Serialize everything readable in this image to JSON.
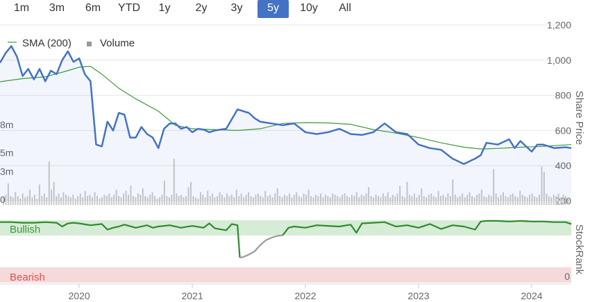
{
  "range_selector": {
    "options": [
      "1m",
      "3m",
      "6m",
      "YTD",
      "1y",
      "2y",
      "3y",
      "5y",
      "10y",
      "All"
    ],
    "selected": "5y"
  },
  "colors": {
    "price_line": "#4472c4",
    "sma_line": "#3a9a3a",
    "volume_bar": "#c8c8c8",
    "bullish_band": "#d6ecd6",
    "bearish_band": "#f6dadb",
    "stockrank_bullish": "#2e8b2e",
    "stockrank_neutral": "#999999",
    "bullish_text": "#3a9a3a",
    "bearish_text": "#d9534f"
  },
  "chart_data": [
    {
      "type": "line",
      "name": "price-panel",
      "ylabel": "Share Price",
      "ylim": [
        200,
        1200
      ],
      "yticks": [
        "200",
        "400",
        "600",
        "800",
        "1,000",
        "1,200"
      ],
      "legend": [
        "SMA (200)",
        "Volume"
      ],
      "legend_position": "top-left",
      "x_start": 2019.3,
      "x_end": 2024.35,
      "xticks": [
        "2020",
        "2021",
        "2022",
        "2023",
        "2024"
      ],
      "series": [
        {
          "name": "SMA (200)",
          "x": [
            2019.3,
            2019.5,
            2019.7,
            2019.9,
            2020.0,
            2020.1,
            2020.2,
            2020.35,
            2020.5,
            2020.7,
            2020.85,
            2021.0,
            2021.2,
            2021.4,
            2021.6,
            2021.8,
            2022.0,
            2022.2,
            2022.4,
            2022.6,
            2022.8,
            2023.0,
            2023.2,
            2023.4,
            2023.55,
            2023.7,
            2023.9,
            2024.1,
            2024.35
          ],
          "values": [
            877,
            895,
            905,
            940,
            960,
            965,
            920,
            840,
            780,
            710,
            630,
            610,
            605,
            600,
            610,
            640,
            645,
            643,
            635,
            605,
            585,
            560,
            530,
            505,
            495,
            498,
            505,
            510,
            520
          ]
        },
        {
          "name": "Share Price",
          "x": [
            2019.3,
            2019.35,
            2019.4,
            2019.45,
            2019.5,
            2019.55,
            2019.6,
            2019.65,
            2019.7,
            2019.75,
            2019.8,
            2019.85,
            2019.9,
            2019.95,
            2020.0,
            2020.05,
            2020.1,
            2020.15,
            2020.2,
            2020.25,
            2020.3,
            2020.35,
            2020.4,
            2020.45,
            2020.5,
            2020.55,
            2020.6,
            2020.65,
            2020.7,
            2020.75,
            2020.8,
            2020.85,
            2020.9,
            2020.95,
            2021.0,
            2021.05,
            2021.1,
            2021.15,
            2021.2,
            2021.3,
            2021.4,
            2021.5,
            2021.55,
            2021.6,
            2021.7,
            2021.8,
            2021.9,
            2022.0,
            2022.1,
            2022.2,
            2022.3,
            2022.4,
            2022.5,
            2022.6,
            2022.7,
            2022.8,
            2022.9,
            2023.0,
            2023.1,
            2023.2,
            2023.3,
            2023.4,
            2023.5,
            2023.55,
            2023.6,
            2023.7,
            2023.8,
            2023.85,
            2023.9,
            2024.0,
            2024.05,
            2024.1,
            2024.2,
            2024.3,
            2024.35
          ],
          "values": [
            985,
            1040,
            1080,
            1020,
            910,
            950,
            890,
            950,
            880,
            940,
            920,
            1000,
            1050,
            990,
            1010,
            920,
            880,
            520,
            510,
            650,
            600,
            700,
            690,
            560,
            560,
            620,
            580,
            560,
            500,
            610,
            640,
            640,
            610,
            620,
            590,
            610,
            605,
            590,
            600,
            610,
            720,
            700,
            670,
            650,
            640,
            630,
            640,
            590,
            580,
            590,
            610,
            580,
            575,
            590,
            640,
            590,
            580,
            520,
            500,
            490,
            440,
            410,
            440,
            460,
            530,
            520,
            550,
            500,
            540,
            480,
            520,
            520,
            500,
            505,
            500
          ]
        }
      ],
      "volume": {
        "unit_labels": [
          "0",
          "3m",
          "5m",
          "8m"
        ],
        "values": [
          0.6,
          0.8,
          1.7,
          0.7,
          0.6,
          1.0,
          0.7,
          0.5,
          0.9,
          0.6,
          0.7,
          1.2,
          0.6,
          0.8,
          0.5,
          1.6,
          0.7,
          0.9,
          0.6,
          3.4,
          1.2,
          1.8,
          0.7,
          0.9,
          0.6,
          1.0,
          0.8,
          0.7,
          0.6,
          0.8,
          0.5,
          0.7,
          0.9,
          0.6,
          1.1,
          0.7,
          0.8,
          0.6,
          1.0,
          0.7,
          0.5,
          0.6,
          0.8,
          0.7,
          0.9,
          0.6,
          0.8,
          1.2,
          0.7,
          0.6,
          0.9,
          1.1,
          0.8,
          1.5,
          0.7,
          0.6,
          0.9,
          0.8,
          1.3,
          0.7,
          0.6,
          0.8,
          1.0,
          0.7,
          0.5,
          0.6,
          0.8,
          1.9,
          0.7,
          0.6,
          0.8,
          3.6,
          0.9,
          0.7,
          0.8,
          0.6,
          0.7,
          1.4,
          1.8,
          0.7,
          0.6,
          0.5,
          1.0,
          0.8,
          0.6,
          1.1,
          0.7,
          0.9,
          0.6,
          0.7,
          1.0,
          0.8,
          0.6,
          0.9,
          0.7,
          0.8,
          0.6,
          1.2,
          0.7,
          0.9,
          0.6,
          0.8,
          1.0,
          0.7,
          0.6,
          0.8,
          0.9,
          0.7,
          0.6,
          1.1,
          0.7,
          0.8,
          0.6,
          0.9,
          1.3,
          0.7,
          0.6,
          0.8,
          0.7,
          0.9,
          0.6,
          0.8,
          1.0,
          0.7,
          0.6,
          0.9,
          0.8,
          1.2,
          0.7,
          0.6,
          0.8,
          0.7,
          0.9,
          0.6,
          0.8,
          0.7,
          0.6,
          0.9,
          0.8,
          0.7,
          0.6,
          0.8,
          0.9,
          0.7,
          0.6,
          0.8,
          0.7,
          1.0,
          0.6,
          0.8,
          0.7,
          0.9,
          1.4,
          0.7,
          0.6,
          0.8,
          0.7,
          0.6,
          0.9,
          0.7,
          1.0,
          0.6,
          0.8,
          0.7,
          0.9,
          1.5,
          0.7,
          0.6,
          1.8,
          0.8,
          0.7,
          0.9,
          0.6,
          0.8,
          1.3,
          0.7,
          0.6,
          0.8,
          0.9,
          0.7,
          0.6,
          1.1,
          0.7,
          0.8,
          0.6,
          0.9,
          0.7,
          2.0,
          0.8,
          0.6,
          0.7,
          0.9,
          0.6,
          0.8,
          1.0,
          0.7,
          0.6,
          0.8,
          0.9,
          1.2,
          0.7,
          0.6,
          0.8,
          0.7,
          2.8,
          0.9,
          0.6,
          0.8,
          1.0,
          0.7,
          0.6,
          0.8,
          0.9,
          0.7,
          0.6,
          1.1,
          0.8,
          0.7,
          0.6,
          0.8,
          0.9,
          0.7,
          0.6,
          0.8,
          3.0,
          2.6,
          0.9,
          0.7,
          0.6,
          0.8,
          0.7,
          0.9,
          0.6,
          0.8,
          0.7,
          0.6
        ]
      }
    },
    {
      "type": "line",
      "name": "stockrank-panel",
      "ylabel": "StockRank",
      "ylim": [
        0,
        100
      ],
      "yticks": [
        "0"
      ],
      "bands": [
        "Bullish",
        "Bearish"
      ],
      "series": [
        {
          "name": "StockRank",
          "x": [
            2019.3,
            2019.4,
            2019.5,
            2019.6,
            2019.7,
            2019.8,
            2019.85,
            2019.9,
            2019.95,
            2020.0,
            2020.1,
            2020.2,
            2020.25,
            2020.3,
            2020.35,
            2020.4,
            2020.5,
            2020.6,
            2020.65,
            2020.7,
            2020.8,
            2020.9,
            2021.0,
            2021.1,
            2021.15,
            2021.2,
            2021.3,
            2021.35,
            2021.4,
            2021.42,
            2021.45,
            2021.5,
            2021.55,
            2021.6,
            2021.65,
            2021.7,
            2021.75,
            2021.8,
            2021.85,
            2021.9,
            2022.0,
            2022.1,
            2022.2,
            2022.3,
            2022.4,
            2022.45,
            2022.5,
            2022.6,
            2022.7,
            2022.8,
            2022.9,
            2023.0,
            2023.1,
            2023.2,
            2023.3,
            2023.4,
            2023.5,
            2023.55,
            2023.6,
            2023.7,
            2023.8,
            2023.9,
            2024.0,
            2024.1,
            2024.2,
            2024.3,
            2024.35
          ],
          "values": [
            97,
            97,
            96,
            96,
            97,
            96,
            90,
            95,
            96,
            95,
            92,
            94,
            85,
            88,
            90,
            93,
            88,
            92,
            88,
            90,
            92,
            88,
            91,
            88,
            95,
            87,
            84,
            94,
            92,
            40,
            41,
            45,
            50,
            60,
            68,
            72,
            75,
            76,
            88,
            90,
            88,
            92,
            91,
            90,
            93,
            80,
            95,
            96,
            97,
            90,
            92,
            88,
            94,
            86,
            92,
            90,
            85,
            98,
            99,
            99,
            98,
            99,
            98,
            98,
            97,
            97,
            94
          ],
          "neutral_segment_x": [
            2021.42,
            2021.82
          ]
        }
      ]
    }
  ]
}
